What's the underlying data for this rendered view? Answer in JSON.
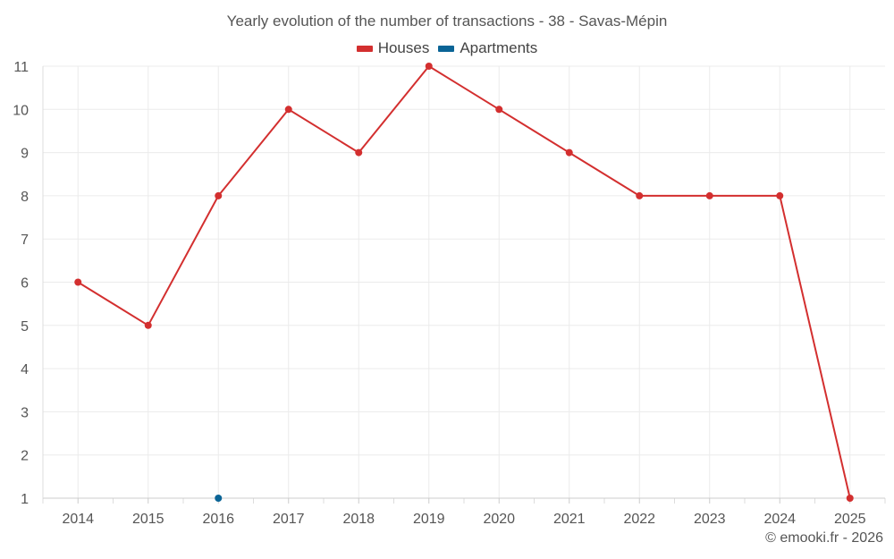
{
  "chart_data": {
    "type": "line",
    "title": "Yearly evolution of the number of transactions - 38 - Savas-Mépin",
    "categories": [
      "2014",
      "2015",
      "2016",
      "2017",
      "2018",
      "2019",
      "2020",
      "2021",
      "2022",
      "2023",
      "2024",
      "2025"
    ],
    "yticks": [
      "1",
      "2",
      "3",
      "4",
      "5",
      "6",
      "7",
      "8",
      "9",
      "10",
      "11"
    ],
    "ylim": [
      1,
      11
    ],
    "legend_position": "top-center",
    "grid": true,
    "series": [
      {
        "name": "Houses",
        "color": "#d32f2f",
        "values": [
          6,
          5,
          8,
          10,
          9,
          11,
          10,
          9,
          8,
          8,
          8,
          1
        ]
      },
      {
        "name": "Apartments",
        "color": "#0a6496",
        "values": [
          null,
          null,
          1,
          null,
          null,
          null,
          null,
          null,
          null,
          null,
          null,
          null
        ]
      }
    ]
  },
  "footer": {
    "credit": "© emooki.fr - 2026"
  }
}
